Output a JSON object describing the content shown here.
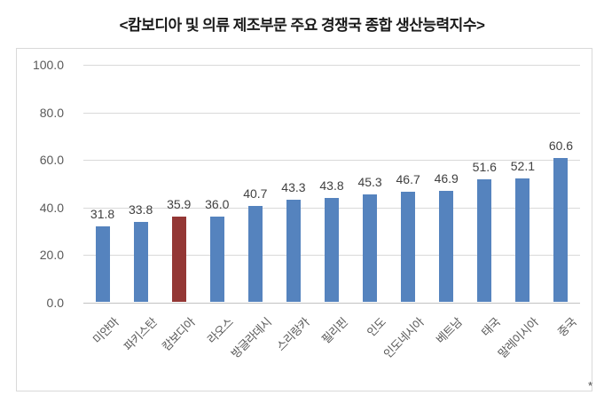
{
  "title": "<캄보디아 및 의류 제조부문 주요 경쟁국 종합 생산능력지수>",
  "corner_mark": "*",
  "colors": {
    "bar": "#5583be",
    "highlight_bar": "#943735",
    "gridline": "#d9d9d9",
    "baseline": "#c3c3c3",
    "axis_text": "#595959",
    "value_label_text": "#404040",
    "chart_border": "#d9d9d9"
  },
  "chart_data": {
    "type": "bar",
    "title": "<캄보디아 및 의류 제조부문 주요 경쟁국 종합 생산능력지수>",
    "categories": [
      "미얀마",
      "파키스탄",
      "캄보디아",
      "라오스",
      "방글라데시",
      "스리랑카",
      "필리핀",
      "인도",
      "인도네시아",
      "베트남",
      "태국",
      "말레이시아",
      "중국"
    ],
    "values": [
      31.8,
      33.8,
      35.9,
      36.0,
      40.7,
      43.3,
      43.8,
      45.3,
      46.7,
      46.9,
      51.6,
      52.1,
      60.6
    ],
    "value_labels": [
      "31.8",
      "33.8",
      "35.9",
      "36.0",
      "40.7",
      "43.3",
      "43.8",
      "45.3",
      "46.7",
      "46.9",
      "51.6",
      "52.1",
      "60.6"
    ],
    "highlighted_category": "캄보디아",
    "xlabel": "",
    "ylabel": "",
    "ylim": [
      0,
      100
    ],
    "y_ticks": [
      "100.0",
      "80.0",
      "60.0",
      "40.0",
      "20.0",
      "0.0"
    ],
    "grid": true,
    "legend": "none",
    "data_labels": true
  }
}
